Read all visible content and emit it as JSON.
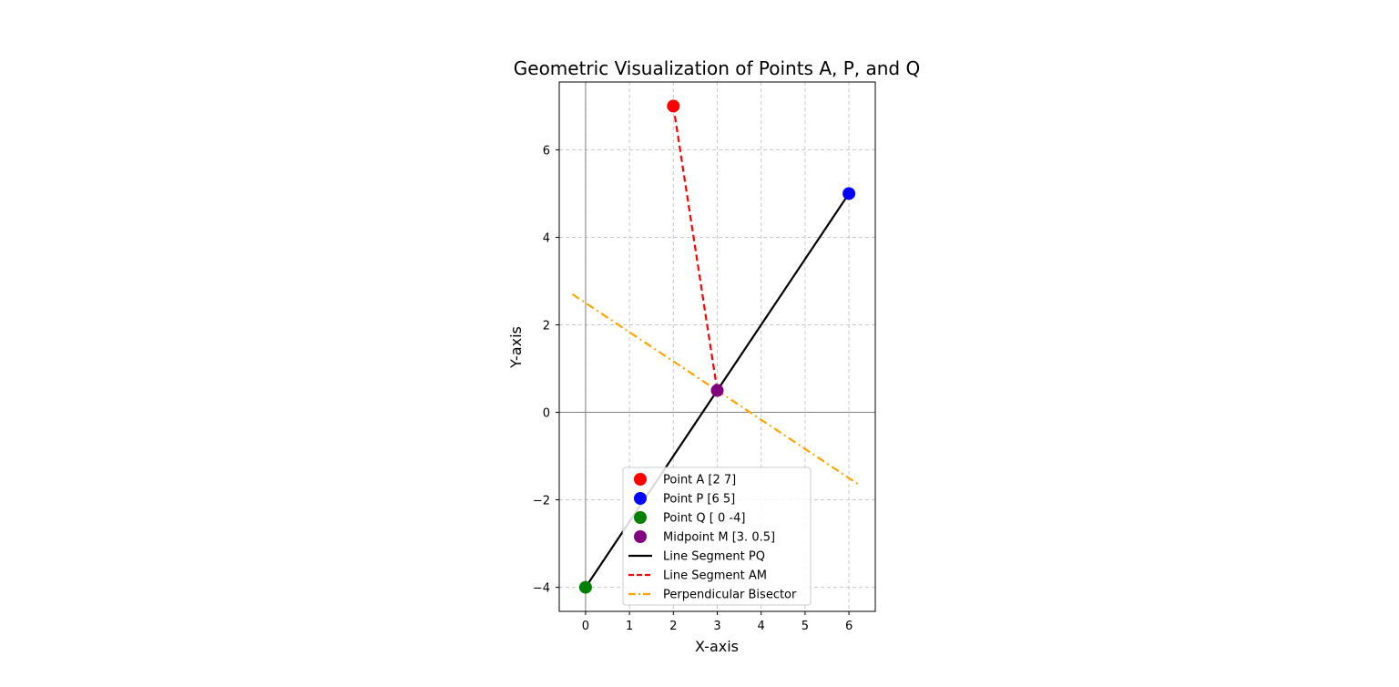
{
  "chart_data": {
    "type": "scatter",
    "title": "Geometric Visualization of Points A, P, and Q",
    "xlabel": "X-axis",
    "ylabel": "Y-axis",
    "xlim": [
      -0.6,
      6.6
    ],
    "ylim": [
      -4.55,
      7.55
    ],
    "xticks": [
      0,
      1,
      2,
      3,
      4,
      5,
      6
    ],
    "yticks": [
      -4,
      -2,
      0,
      2,
      4,
      6
    ],
    "grid": true,
    "legend_position": "lower center",
    "points": [
      {
        "name": "Point A [2 7]",
        "x": 2,
        "y": 7,
        "color": "#ff0000"
      },
      {
        "name": "Point P [6 5]",
        "x": 6,
        "y": 5,
        "color": "#0000ff"
      },
      {
        "name": "Point Q [ 0 -4]",
        "x": 0,
        "y": -4,
        "color": "#008000"
      },
      {
        "name": "Midpoint M [3.  0.5]",
        "x": 3,
        "y": 0.5,
        "color": "#800080"
      }
    ],
    "lines": [
      {
        "name": "Line Segment PQ",
        "x": [
          6,
          0
        ],
        "y": [
          5,
          -4
        ],
        "color": "#000000",
        "style": "solid"
      },
      {
        "name": "Line Segment AM",
        "x": [
          2,
          3
        ],
        "y": [
          7,
          0.5
        ],
        "color": "#ff0000",
        "style": "dashed"
      },
      {
        "name": "Perpendicular Bisector",
        "x": [
          -0.3,
          6.25
        ],
        "y": [
          2.7,
          -1.67
        ],
        "color": "#ffa500",
        "style": "dashdot"
      }
    ],
    "reference_lines": {
      "x": 0,
      "y": 0,
      "color": "#808080"
    }
  }
}
